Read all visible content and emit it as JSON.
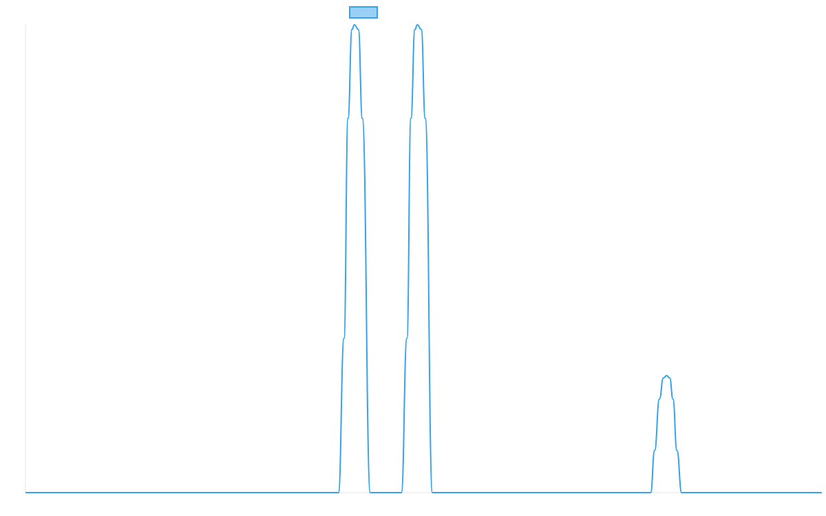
{
  "chart_data": {
    "type": "line",
    "title": "",
    "xlabel": "",
    "ylabel": "",
    "grid": false,
    "legend": {
      "placement": "top-center",
      "swatch_fill": "#9ad0f5",
      "swatch_stroke": "#36a2eb"
    },
    "xlim": [
      0,
      100
    ],
    "ylim": [
      0,
      1
    ],
    "series": [
      {
        "color": "#36a2eb",
        "x": [
          0,
          39.3,
          40.0,
          40.5,
          41.0,
          41.3,
          41.8,
          42.3,
          43.3,
          43.7,
          47.2,
          47.9,
          48.4,
          48.9,
          49.2,
          49.7,
          50.2,
          51.1,
          78.5,
          79.0,
          79.6,
          80.1,
          80.5,
          80.9,
          81.3,
          81.8,
          82.4,
          100
        ],
        "y": [
          0,
          0,
          0.33,
          0.8,
          0.99,
          1.0,
          0.99,
          0.8,
          0,
          0,
          0,
          0.33,
          0.8,
          0.99,
          1.0,
          0.99,
          0.8,
          0,
          0,
          0.09,
          0.2,
          0.245,
          0.25,
          0.245,
          0.2,
          0.09,
          0,
          0
        ]
      }
    ]
  }
}
